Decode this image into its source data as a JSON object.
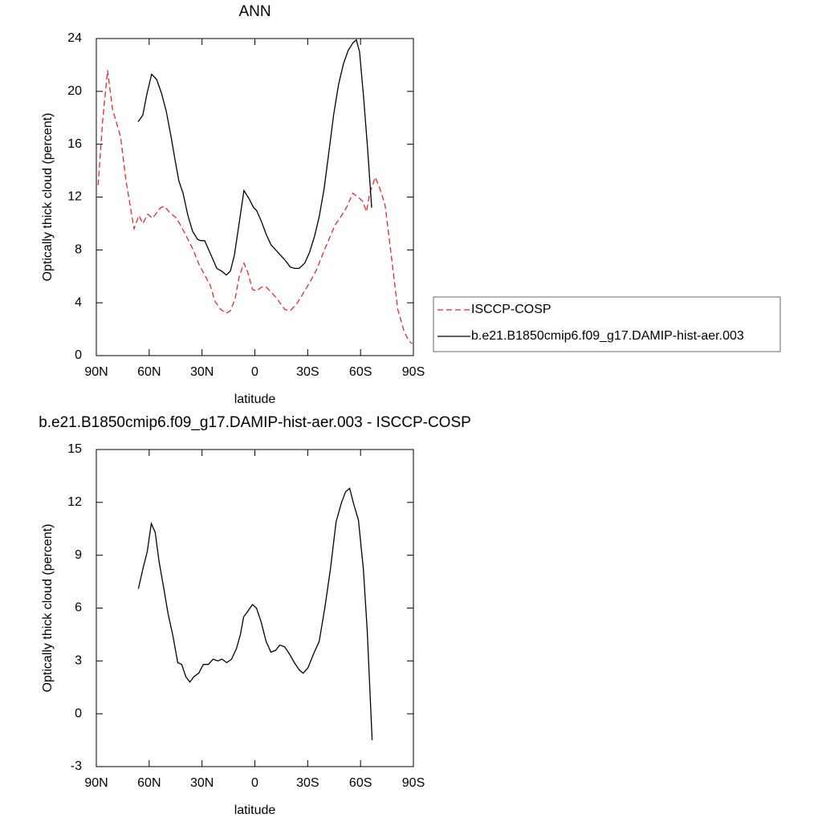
{
  "chart_data": [
    {
      "type": "line",
      "title": "ANN",
      "xlabel": "latitude",
      "ylabel": "Optically thick cloud (percent)",
      "xlim": [
        90,
        -90
      ],
      "ylim": [
        0,
        24
      ],
      "xticks": [
        {
          "value": 90,
          "label": "90N"
        },
        {
          "value": 60,
          "label": "60N"
        },
        {
          "value": 30,
          "label": "30N"
        },
        0,
        {
          "value": -30,
          "label": "30S"
        },
        {
          "value": -60,
          "label": "60S"
        },
        {
          "value": -90,
          "label": "90S"
        }
      ],
      "yticks": [
        0,
        4,
        8,
        12,
        16,
        20,
        24
      ],
      "legend": "right",
      "series": [
        {
          "name": "ISCCP-COSP",
          "color": "#e8262a",
          "dashed": true,
          "x": [
            89,
            86.4,
            83.6,
            80.9,
            76.3,
            73.1,
            68.6,
            65.8,
            63.6,
            60.8,
            58.1,
            53.5,
            51.3,
            48.1,
            44.4,
            39.9,
            35.3,
            31.7,
            28.5,
            25.3,
            22.6,
            19.4,
            16.2,
            13.9,
            11.2,
            8.9,
            6.2,
            4.0,
            1.3,
            -0.9,
            -4.0,
            -6.4,
            -10.0,
            -13.7,
            -16.9,
            -20.1,
            -23.7,
            -27.4,
            -31.0,
            -34.7,
            -38.3,
            -42.0,
            -45.6,
            -49.2,
            -52.0,
            -55.6,
            -58.4,
            -61.1,
            -63.4,
            -65.2,
            -68.4,
            -71.1,
            -73.9,
            -77.5,
            -81.1,
            -84.8,
            -87.5,
            -89.3
          ],
          "values": [
            12.9,
            17.8,
            21.6,
            18.7,
            16.6,
            13.2,
            9.6,
            10.6,
            10.0,
            10.7,
            10.4,
            11.2,
            11.3,
            10.8,
            10.4,
            9.3,
            8.1,
            6.9,
            6.1,
            5.3,
            4.1,
            3.5,
            3.2,
            3.4,
            4.3,
            6.0,
            7.0,
            6.3,
            5.0,
            4.9,
            5.2,
            5.2,
            4.7,
            4.1,
            3.5,
            3.4,
            3.9,
            4.7,
            5.5,
            6.4,
            7.6,
            8.8,
            9.9,
            10.6,
            11.2,
            12.3,
            12.0,
            11.7,
            10.9,
            12.3,
            13.5,
            12.6,
            11.4,
            7.5,
            3.5,
            1.8,
            1.1,
            0.9
          ]
        },
        {
          "name": "b.e21.B1850cmip6.f09_g17.DAMIP-hist-aer.003",
          "color": "#000000",
          "dashed": false,
          "x": [
            66.3,
            63.6,
            61.3,
            58.6,
            55.8,
            53.1,
            50.3,
            47.6,
            45.3,
            43.1,
            40.8,
            38.0,
            35.3,
            32.5,
            30.8,
            28.5,
            26.2,
            23.9,
            21.6,
            18.9,
            16.2,
            13.9,
            11.6,
            9.4,
            6.2,
            3.4,
            0.7,
            -0.9,
            -3.6,
            -6.4,
            -9.1,
            -11.8,
            -14.6,
            -17.3,
            -20.1,
            -22.8,
            -25.1,
            -28.3,
            -31.0,
            -33.8,
            -36.5,
            -39.3,
            -42.0,
            -44.8,
            -47.5,
            -50.3,
            -53.0,
            -55.8,
            -57.6,
            -59.4,
            -61.7,
            -64.0,
            -66.3
          ],
          "values": [
            17.7,
            18.2,
            19.8,
            21.3,
            20.9,
            19.9,
            18.5,
            16.6,
            14.8,
            13.2,
            12.3,
            10.6,
            9.4,
            8.8,
            8.7,
            8.7,
            8.0,
            7.3,
            6.6,
            6.4,
            6.1,
            6.4,
            7.6,
            9.6,
            12.5,
            11.9,
            11.2,
            11.0,
            10.2,
            9.2,
            8.4,
            8.0,
            7.6,
            7.2,
            6.7,
            6.6,
            6.6,
            7.0,
            7.8,
            9.0,
            10.5,
            12.6,
            15.4,
            18.3,
            20.5,
            22.1,
            23.1,
            23.7,
            23.9,
            23.0,
            19.6,
            15.7,
            11.2
          ]
        }
      ]
    },
    {
      "type": "line",
      "title": "b.e21.B1850cmip6.f09_g17.DAMIP-hist-aer.003 - ISCCP-COSP",
      "xlabel": "latitude",
      "ylabel": "Optically thick cloud (percent)",
      "xlim": [
        90,
        -90
      ],
      "ylim": [
        -3,
        15
      ],
      "xticks": [
        {
          "value": 90,
          "label": "90N"
        },
        {
          "value": 60,
          "label": "60N"
        },
        {
          "value": 30,
          "label": "30N"
        },
        0,
        {
          "value": -30,
          "label": "30S"
        },
        {
          "value": -60,
          "label": "60S"
        },
        {
          "value": -90,
          "label": "90S"
        }
      ],
      "yticks": [
        -3,
        0,
        3,
        6,
        9,
        12,
        15
      ],
      "series": [
        {
          "color": "#000000",
          "dashed": false,
          "x": [
            66.1,
            63.4,
            61.1,
            58.8,
            56.6,
            54.3,
            51.5,
            49.3,
            46.5,
            43.8,
            41.5,
            39.2,
            36.9,
            34.7,
            31.9,
            29.2,
            26.4,
            23.7,
            21.0,
            18.7,
            16.0,
            13.2,
            10.5,
            8.2,
            6.4,
            4.1,
            1.4,
            -0.9,
            -3.6,
            -6.4,
            -9.1,
            -11.8,
            -14.1,
            -16.9,
            -19.6,
            -22.4,
            -25.1,
            -27.4,
            -30.1,
            -33.3,
            -36.5,
            -39.7,
            -42.9,
            -46.1,
            -49.2,
            -51.5,
            -53.8,
            -56.1,
            -58.8,
            -61.6,
            -63.8,
            -66.6
          ],
          "values": [
            7.1,
            8.3,
            9.2,
            10.8,
            10.3,
            8.6,
            7.0,
            5.7,
            4.4,
            2.9,
            2.8,
            2.1,
            1.8,
            2.1,
            2.3,
            2.8,
            2.8,
            3.1,
            3.0,
            3.1,
            2.9,
            3.1,
            3.7,
            4.5,
            5.5,
            5.8,
            6.2,
            6.0,
            5.2,
            4.1,
            3.5,
            3.6,
            3.9,
            3.8,
            3.4,
            2.9,
            2.5,
            2.3,
            2.6,
            3.4,
            4.1,
            6.0,
            8.2,
            10.9,
            12.0,
            12.6,
            12.8,
            11.9,
            11.0,
            8.2,
            4.7,
            -1.5
          ]
        }
      ]
    }
  ]
}
